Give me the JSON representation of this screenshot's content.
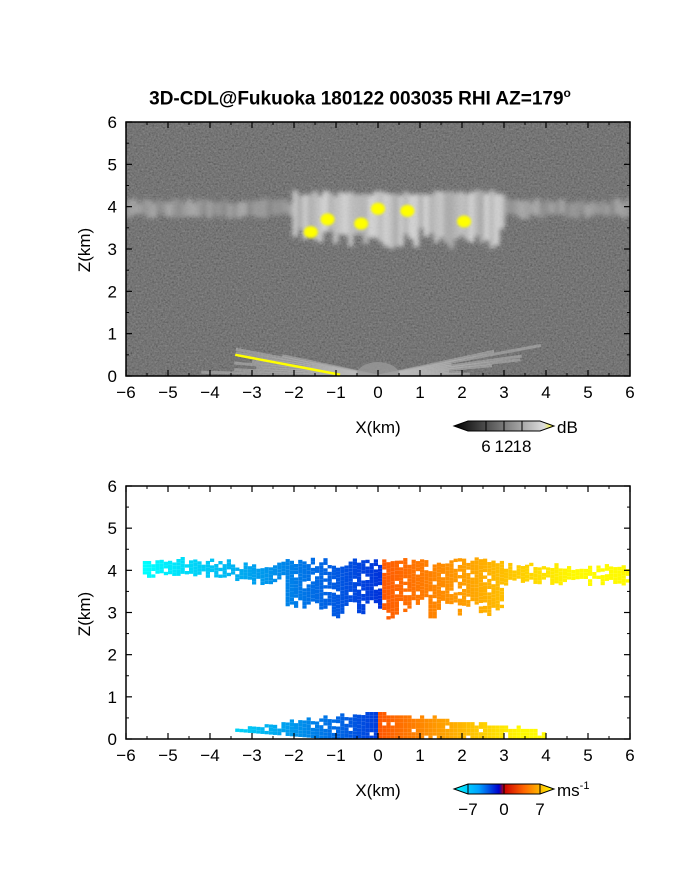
{
  "title": "3D-CDL@Fukuoka 180122 003035 RHI AZ=179",
  "title_degree": "o",
  "chart_data": [
    {
      "type": "heatmap",
      "panel": "reflectivity",
      "xlabel": "X(km)",
      "ylabel": "Z(km)",
      "xlim": [
        -6,
        6
      ],
      "ylim": [
        0,
        6
      ],
      "xticks": [
        -6,
        -5,
        -4,
        -3,
        -2,
        -1,
        0,
        1,
        2,
        3,
        4,
        5,
        6
      ],
      "yticks": [
        0,
        1,
        2,
        3,
        4,
        5,
        6
      ],
      "colorbar": {
        "unit": "dB",
        "ticks": [
          6,
          12,
          18
        ],
        "colormap": "grayscale-yellow"
      },
      "features": [
        {
          "label": "cloud layer",
          "x_range": [
            -6,
            6
          ],
          "z_range": [
            2.8,
            4.4
          ]
        },
        {
          "label": "near-ground echo",
          "x_range": [
            -3.5,
            1.5
          ],
          "z_range": [
            0,
            0.6
          ]
        }
      ],
      "high_echo_cells": [
        {
          "x": 0.0,
          "z": 3.95
        },
        {
          "x": 0.7,
          "z": 3.9
        },
        {
          "x": -0.4,
          "z": 3.6
        },
        {
          "x": 2.05,
          "z": 3.65
        },
        {
          "x": -1.6,
          "z": 3.4
        },
        {
          "x": -1.2,
          "z": 3.7
        }
      ]
    },
    {
      "type": "heatmap",
      "panel": "doppler_velocity",
      "xlabel": "X(km)",
      "ylabel": "Z(km)",
      "xlim": [
        -6,
        6
      ],
      "ylim": [
        0,
        6
      ],
      "xticks": [
        -6,
        -5,
        -4,
        -3,
        -2,
        -1,
        0,
        1,
        2,
        3,
        4,
        5,
        6
      ],
      "yticks": [
        0,
        1,
        2,
        3,
        4,
        5,
        6
      ],
      "colorbar": {
        "unit": "ms",
        "unit_exponent": "-1",
        "ticks": [
          -7,
          0,
          7
        ],
        "range": [
          -7,
          7
        ]
      },
      "features": [
        {
          "label": "cloud layer, negative velocity",
          "x_range": [
            -5.5,
            0.0
          ],
          "z_range": [
            2.9,
            4.3
          ]
        },
        {
          "label": "cloud layer, positive velocity",
          "x_range": [
            0.0,
            6.0
          ],
          "z_range": [
            2.8,
            4.2
          ]
        },
        {
          "label": "low-level, negative velocity",
          "x_range": [
            -4.0,
            0.0
          ],
          "z_range": [
            0.0,
            0.8
          ]
        },
        {
          "label": "low-level, positive velocity",
          "x_range": [
            0.0,
            4.0
          ],
          "z_range": [
            0.0,
            0.6
          ]
        }
      ]
    }
  ],
  "colors": {
    "yellow": "#ffff00",
    "background_dark": "#1e1e1e"
  }
}
